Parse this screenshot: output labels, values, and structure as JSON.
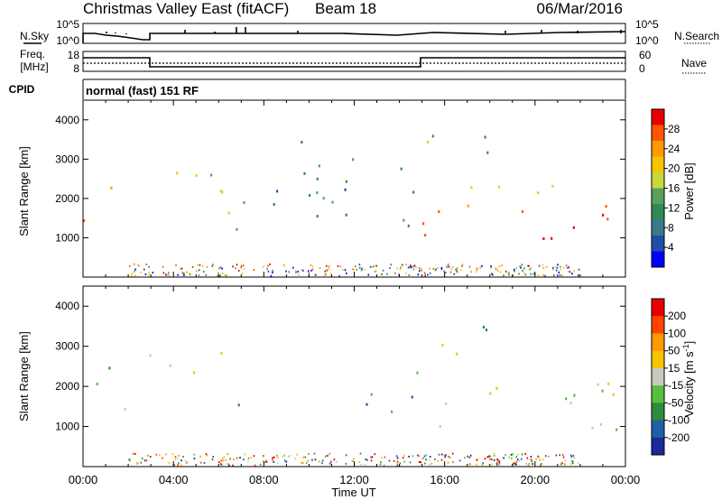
{
  "header": {
    "title": "Christmas Valley East (fitACF)",
    "beam": "Beam 18",
    "date": "06/Mar/2016"
  },
  "params": {
    "nsky_label": "N.Sky",
    "nsearch_label": "N.Search",
    "noise_ticks_left": [
      "10^5",
      "10^0"
    ],
    "noise_ticks_right": [
      "10^5",
      "10^0"
    ],
    "freq_label_1": "Freq.",
    "freq_label_2": "[MHz]",
    "freq_ticks": [
      "18",
      "8"
    ],
    "nave_label": "Nave",
    "nave_ticks": [
      "60",
      "0"
    ],
    "cpid_label": "CPID",
    "cpid_value": "normal (fast) 151 RF"
  },
  "chart_data": [
    {
      "type": "heatmap",
      "panel": "power",
      "ylabel": "Slant Range [km]",
      "ylim": [
        0,
        4500
      ],
      "yticks": [
        "1000",
        "2000",
        "3000",
        "4000"
      ],
      "xlim_hours": [
        0,
        24
      ],
      "colorbar_label": "Power [dB]",
      "colorbar_ticks": [
        "28",
        "24",
        "20",
        "16",
        "12",
        "8",
        "4"
      ],
      "colors": [
        "#0000ff",
        "#1f4fa8",
        "#3a7a8a",
        "#2e8b57",
        "#5aa05a",
        "#c8d83a",
        "#f5c400",
        "#ff9900",
        "#ff5500",
        "#e60000"
      ],
      "echo_regions": [
        {
          "t0": 0.0,
          "t1": 1.6,
          "r0": 1100,
          "r1": 1500,
          "level": 0.95
        },
        {
          "t0": 1.0,
          "t1": 2.0,
          "r0": 1500,
          "r1": 2600,
          "level": 0.75
        },
        {
          "t0": 2.8,
          "t1": 6.8,
          "r0": 2000,
          "r1": 2900,
          "level": 0.6
        },
        {
          "t0": 4.5,
          "t1": 7.3,
          "r0": 1100,
          "r1": 2300,
          "level": 0.4
        },
        {
          "t0": 8.0,
          "t1": 15.0,
          "r0": 1200,
          "r1": 3700,
          "level": 0.3
        },
        {
          "t0": 15.0,
          "t1": 24.0,
          "r0": 900,
          "r1": 1700,
          "level": 0.95
        },
        {
          "t0": 15.0,
          "t1": 24.0,
          "r0": 1700,
          "r1": 2400,
          "level": 0.7
        },
        {
          "t0": 15.0,
          "t1": 19.0,
          "r0": 2700,
          "r1": 3700,
          "level": 0.45
        }
      ]
    },
    {
      "type": "heatmap",
      "panel": "velocity",
      "ylabel": "Slant Range [km]",
      "ylim": [
        0,
        4500
      ],
      "yticks": [
        "1000",
        "2000",
        "3000",
        "4000"
      ],
      "xlim_hours": [
        0,
        24
      ],
      "colorbar_label": "Velocity [m s^-1]",
      "colorbar_ticks": [
        "200",
        "100",
        "50",
        "15",
        "-15",
        "-50",
        "-100",
        "-200"
      ],
      "colors": [
        "#1a2a9a",
        "#1f5fa8",
        "#2e8b3a",
        "#55c040",
        "#c8c8c0",
        "#f5c400",
        "#ff9900",
        "#ff4400",
        "#e60000"
      ],
      "echo_regions": [
        {
          "t0": 0.0,
          "t1": 2.0,
          "r0": 1100,
          "r1": 2600,
          "level": 0.5
        },
        {
          "t0": 2.8,
          "t1": 6.8,
          "r0": 2000,
          "r1": 2900,
          "level": 0.5
        },
        {
          "t0": 6.8,
          "t1": 7.8,
          "r0": 1300,
          "r1": 2300,
          "level": 0.3
        },
        {
          "t0": 12.0,
          "t1": 15.0,
          "r0": 1200,
          "r1": 2800,
          "level": 0.35
        },
        {
          "t0": 15.0,
          "t1": 24.0,
          "r0": 900,
          "r1": 2300,
          "level": 0.5
        },
        {
          "t0": 15.0,
          "t1": 19.0,
          "r0": 2700,
          "r1": 3700,
          "level": 0.45
        }
      ]
    }
  ],
  "xaxis": {
    "ticks": [
      "00:00",
      "04:00",
      "08:00",
      "12:00",
      "16:00",
      "20:00",
      "00:00"
    ],
    "label": "Time UT"
  }
}
